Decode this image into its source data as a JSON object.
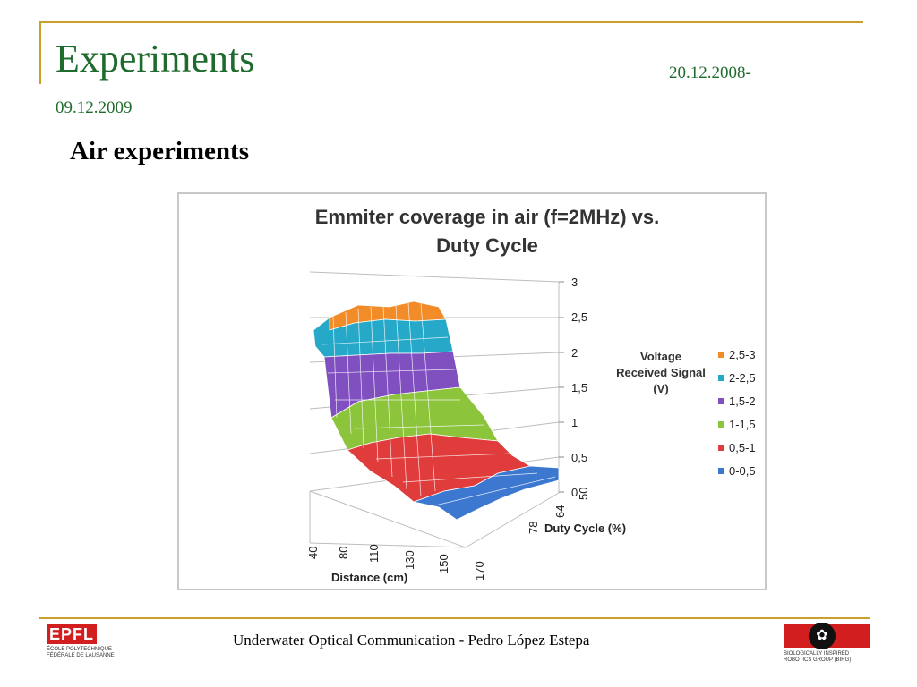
{
  "slide": {
    "title": "Experiments",
    "date_start": "20.12.2008-",
    "date_end": "09.12.2009",
    "subtitle": "Air experiments",
    "footer": "Underwater Optical Communication - Pedro López Estepa"
  },
  "logos": {
    "left_mark": "EPFL",
    "left_caption_1": "ÉCOLE POLYTECHNIQUE",
    "left_caption_2": "FÉDÉRALE DE LAUSANNE",
    "right_caption_1": "BIOLOGICALLY INSPIRED",
    "right_caption_2": "ROBOTICS GROUP (BIRG)"
  },
  "chart_data": {
    "type": "surface",
    "title_line1": "Emmiter coverage in air (f=2MHz) vs.",
    "title_line2": "Duty Cycle",
    "xlabel": "Distance (cm)",
    "ylabel": "Duty Cycle (%)",
    "zlabel": "",
    "x_ticks": [
      "40",
      "80",
      "110",
      "130",
      "150",
      "170"
    ],
    "y_ticks": [
      "50",
      "64",
      "78"
    ],
    "z_ticks": [
      "0",
      "0,5",
      "1",
      "1,5",
      "2",
      "2,5",
      "3"
    ],
    "zlim": [
      0,
      3
    ],
    "legend_title_1": "Voltage",
    "legend_title_2": "Received Signal",
    "legend_title_3": "(V)",
    "legend": [
      {
        "label": "2,5-3",
        "color": "#f28c28"
      },
      {
        "label": "2-2,5",
        "color": "#26a9c8"
      },
      {
        "label": "1,5-2",
        "color": "#8050c0"
      },
      {
        "label": "1-1,5",
        "color": "#8cc43c"
      },
      {
        "label": "0,5-1",
        "color": "#e03c3c"
      },
      {
        "label": "0-0,5",
        "color": "#3c78d0"
      }
    ],
    "bands": [
      {
        "range": [
          2.5,
          3
        ],
        "color": "#f28c28"
      },
      {
        "range": [
          2,
          2.5
        ],
        "color": "#26a9c8"
      },
      {
        "range": [
          1.5,
          2
        ],
        "color": "#8050c0"
      },
      {
        "range": [
          1,
          1.5
        ],
        "color": "#8cc43c"
      },
      {
        "range": [
          0.5,
          1
        ],
        "color": "#e03c3c"
      },
      {
        "range": [
          0,
          0.5
        ],
        "color": "#3c78d0"
      }
    ],
    "grid": true,
    "legend_position": "right"
  }
}
